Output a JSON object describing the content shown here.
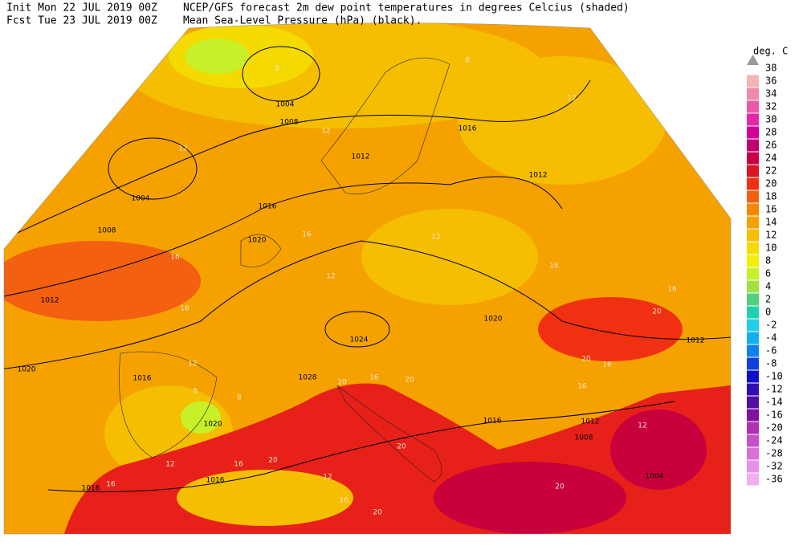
{
  "header": {
    "init": "Init  Mon 22 JUL 2019 00Z",
    "fcst": "Fcst Tue 23 JUL 2019 00Z",
    "title": "NCEP/GFS forecast 2m dew point temperatures in degrees Celcius (shaded)",
    "subtitle": "Mean Sea-Level Pressure (hPa) (black)."
  },
  "legend": {
    "unit": "deg. C",
    "top": 38,
    "levels": [
      {
        "label": 36,
        "color": "#f4b4b4"
      },
      {
        "label": 34,
        "color": "#f088a8"
      },
      {
        "label": 32,
        "color": "#ec58a8"
      },
      {
        "label": 30,
        "color": "#e628a8"
      },
      {
        "label": 28,
        "color": "#d40096"
      },
      {
        "label": 26,
        "color": "#c00070"
      },
      {
        "label": 24,
        "color": "#c80040"
      },
      {
        "label": 22,
        "color": "#dc1420"
      },
      {
        "label": 20,
        "color": "#f03010"
      },
      {
        "label": 18,
        "color": "#f26010"
      },
      {
        "label": 16,
        "color": "#f58800"
      },
      {
        "label": 14,
        "color": "#f5a200"
      },
      {
        "label": 12,
        "color": "#f5be00"
      },
      {
        "label": 10,
        "color": "#f5da00"
      },
      {
        "label": 8,
        "color": "#f0f000"
      },
      {
        "label": 6,
        "color": "#c8f028"
      },
      {
        "label": 4,
        "color": "#a0e040"
      },
      {
        "label": 2,
        "color": "#50d080"
      },
      {
        "label": 0,
        "color": "#20d0b0"
      },
      {
        "label": -2,
        "color": "#20d0e8"
      },
      {
        "label": -4,
        "color": "#10b0f0"
      },
      {
        "label": -6,
        "color": "#1080f0"
      },
      {
        "label": -8,
        "color": "#1040e0"
      },
      {
        "label": -10,
        "color": "#1010c8"
      },
      {
        "label": -12,
        "color": "#3010b0"
      },
      {
        "label": -14,
        "color": "#5010a0"
      },
      {
        "label": -16,
        "color": "#8010a0"
      },
      {
        "label": -20,
        "color": "#b030b0"
      },
      {
        "label": -24,
        "color": "#c850c8"
      },
      {
        "label": -28,
        "color": "#d870d8"
      },
      {
        "label": -32,
        "color": "#e890e8"
      },
      {
        "label": -36,
        "color": "#f0b0f0"
      }
    ]
  },
  "map_labels": {
    "isobars": [
      1004,
      1008,
      1004,
      1008,
      1012,
      1020,
      1016,
      1020,
      1012,
      1016,
      1012,
      1020,
      1024,
      1028,
      1016,
      1020,
      1016,
      1016,
      1016,
      1012,
      1008,
      1004,
      1012
    ],
    "dewpoints": [
      12,
      8,
      8,
      12,
      12,
      16,
      16,
      16,
      12,
      12,
      16,
      16,
      20,
      20,
      20,
      20,
      16,
      8,
      8,
      12,
      20,
      20,
      20,
      16,
      12,
      20,
      16,
      12,
      16,
      16,
      12,
      16
    ]
  }
}
